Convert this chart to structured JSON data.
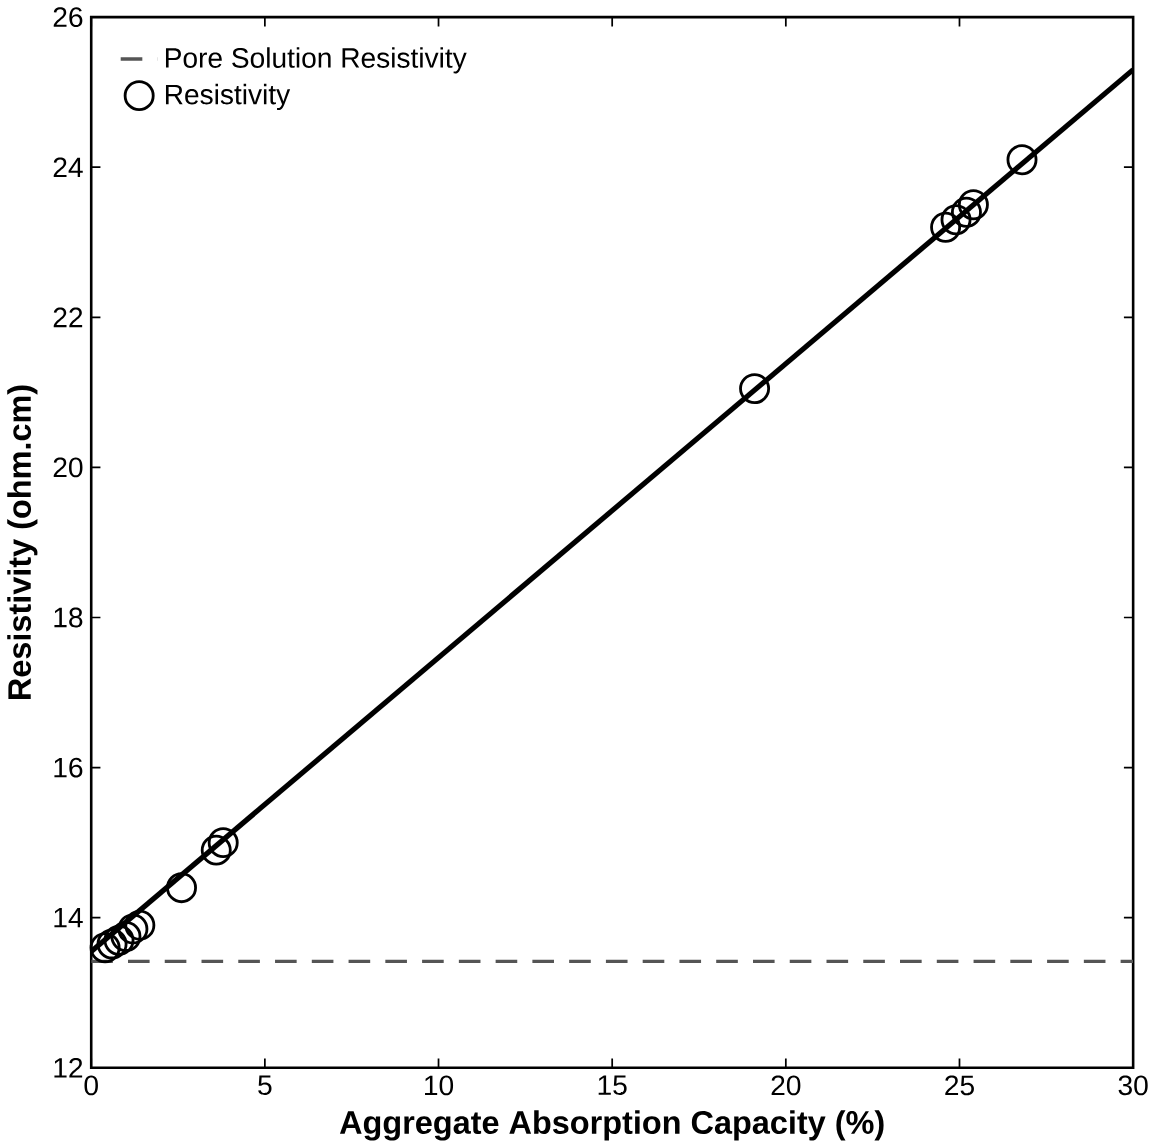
{
  "chart_data": {
    "type": "scatter",
    "xlabel": "Aggregate Absorption Capacity (%)",
    "ylabel": "Resistivity (ohm.cm)",
    "xlim": [
      0,
      30
    ],
    "ylim": [
      12,
      26
    ],
    "xticks": [
      0,
      5,
      10,
      15,
      20,
      25,
      30
    ],
    "yticks": [
      12,
      14,
      16,
      18,
      20,
      22,
      24,
      26
    ],
    "grid": false,
    "legend": "top left",
    "ref_lines": [
      {
        "axis": "y",
        "value": 13.42,
        "label": "Pore Solution Resistivity",
        "color": "#555555",
        "line_style": "dashed"
      }
    ],
    "series": [
      {
        "name": "Resistivity",
        "marker": "circle",
        "color": "#000000",
        "x": [
          0.4,
          0.6,
          0.8,
          1.0,
          1.2,
          1.4,
          2.6,
          3.6,
          3.8,
          19.1,
          24.6,
          24.9,
          25.2,
          25.4,
          26.8
        ],
        "values": [
          13.6,
          13.65,
          13.7,
          13.75,
          13.85,
          13.9,
          14.4,
          14.9,
          15.0,
          21.05,
          23.2,
          23.3,
          23.4,
          23.5,
          24.1
        ]
      },
      {
        "type": "line",
        "marker": "none",
        "color": "#000000",
        "x": [
          0,
          30
        ],
        "values": [
          13.55,
          25.3
        ]
      }
    ]
  }
}
